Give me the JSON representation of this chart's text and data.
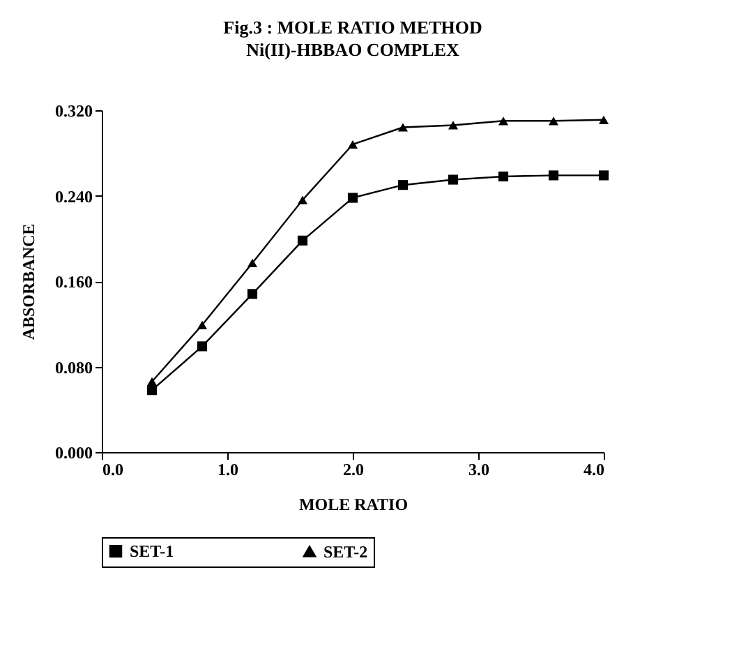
{
  "chart_data": {
    "type": "line",
    "title": "Fig.3 : MOLE RATIO METHOD",
    "subtitle": "Ni(II)-HBBAO COMPLEX",
    "xlabel": "MOLE RATIO",
    "ylabel": "ABSORBANCE",
    "x": [
      0.4,
      0.8,
      1.2,
      1.6,
      2.0,
      2.4,
      2.8,
      3.2,
      3.6,
      4.0
    ],
    "series": [
      {
        "name": "SET-1",
        "color": "#000000",
        "marker": "square",
        "values": [
          0.058,
          0.099,
          0.148,
          0.198,
          0.238,
          0.25,
          0.255,
          0.258,
          0.259,
          0.259
        ]
      },
      {
        "name": "SET-2",
        "color": "#000000",
        "marker": "triangle",
        "values": [
          0.066,
          0.119,
          0.177,
          0.236,
          0.288,
          0.304,
          0.306,
          0.31,
          0.31,
          0.311
        ]
      }
    ],
    "xlim": [
      0,
      4
    ],
    "xticks": [
      {
        "value": 0,
        "label": "0.0"
      },
      {
        "value": 1,
        "label": "1.0"
      },
      {
        "value": 2,
        "label": "2.0"
      },
      {
        "value": 3,
        "label": "3.0"
      },
      {
        "value": 4,
        "label": "4.0"
      }
    ],
    "ylim": [
      0,
      0.32
    ],
    "yticks": [
      {
        "value": 0,
        "label": "0.000"
      },
      {
        "value": 0.08,
        "label": "0.080"
      },
      {
        "value": 0.16,
        "label": "0.160"
      },
      {
        "value": 0.24,
        "label": "0.240"
      },
      {
        "value": 0.32,
        "label": "0.320"
      }
    ],
    "grid": false,
    "legend": "bottom",
    "line_style": "solid"
  }
}
